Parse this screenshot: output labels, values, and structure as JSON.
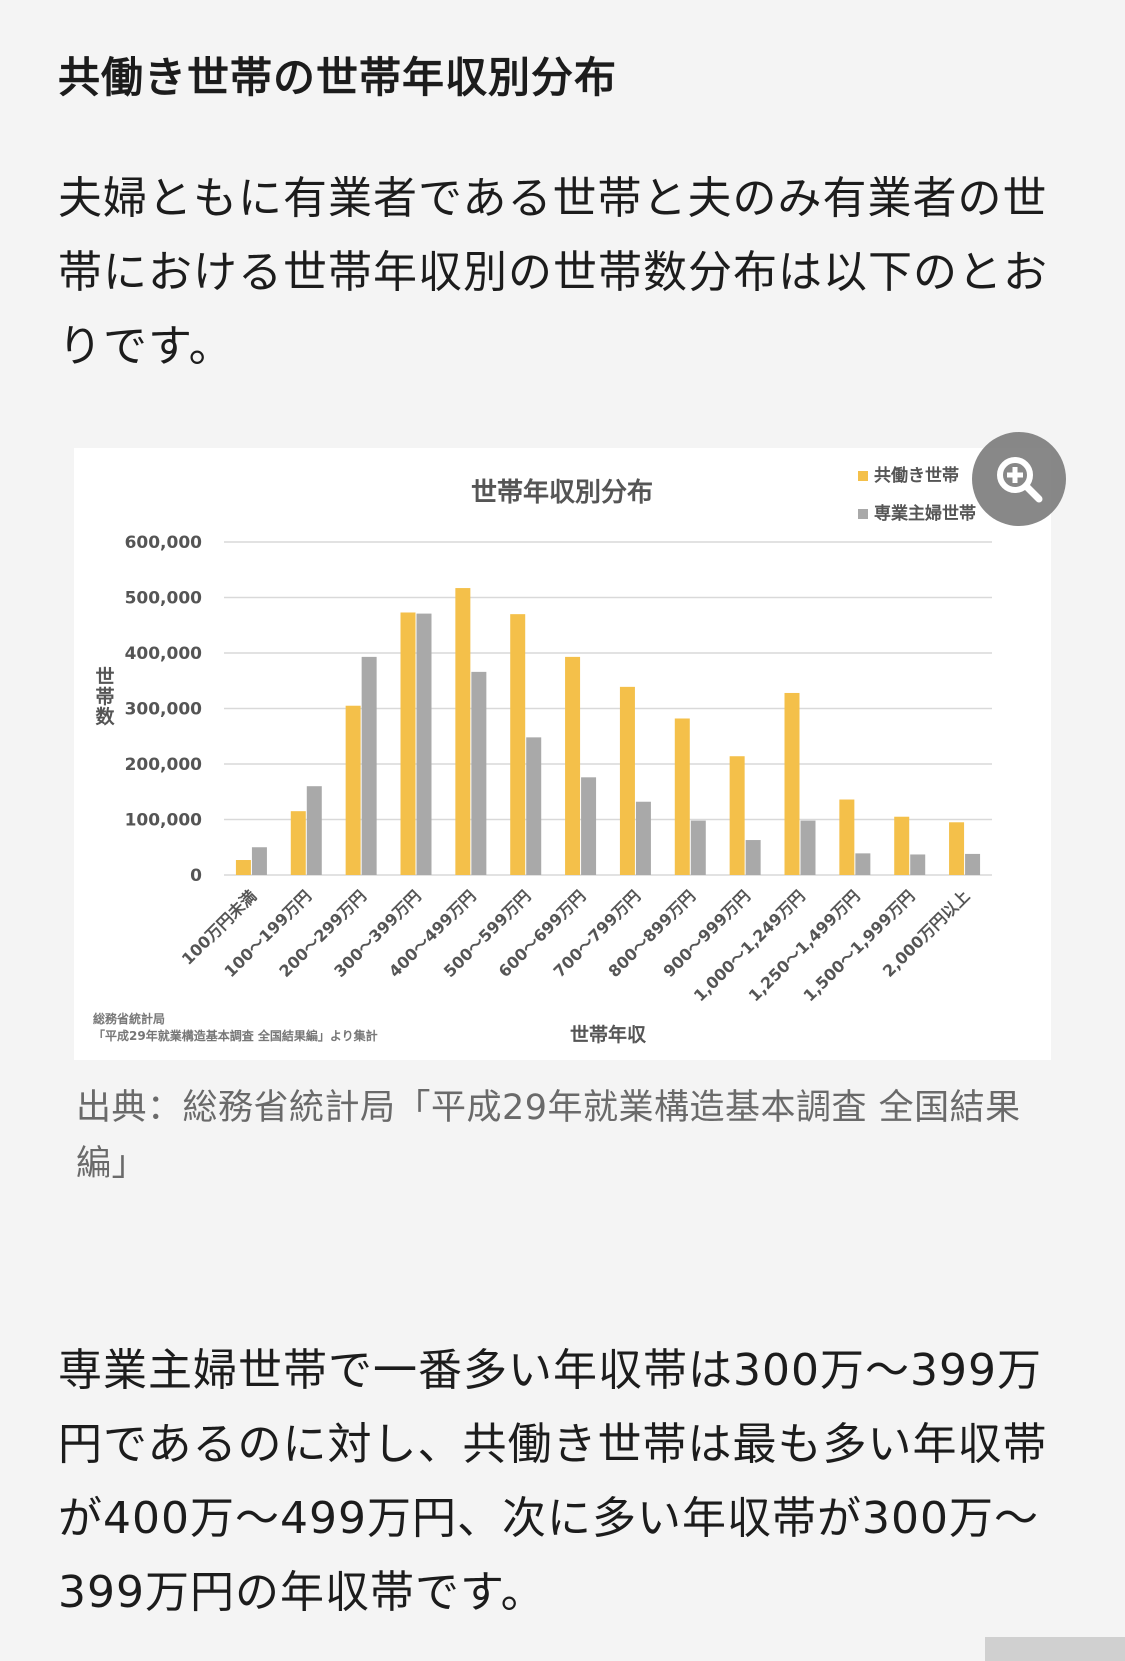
{
  "heading": "共働き世帯の世帯年収別分布",
  "intro": "夫婦ともに有業者である世帯と夫のみ有業者の世帯における世帯年収別の世帯数分布は以下のとおりです。",
  "caption": "出典：総務省統計局「平成29年就業構造基本調査 全国結果編」",
  "summary": "専業主婦世帯で一番多い年収帯は300万～399万円であるのに対し、共働き世帯は最も多い年収帯が400万～499万円、次に多い年収帯が300万～399万円の年収帯です。",
  "zoom_icon": "zoom-in-icon",
  "colors": {
    "series1": "#f4c04a",
    "series2": "#a9a9a9"
  },
  "chart_data": {
    "type": "bar",
    "title": "世帯年収別分布",
    "xlabel": "世帯年収",
    "ylabel": "世帯数",
    "ylim": [
      0,
      600000
    ],
    "yticks": [
      "0",
      "100,000",
      "200,000",
      "300,000",
      "400,000",
      "500,000",
      "600,000"
    ],
    "source_note_line1": "総務省統計局",
    "source_note_line2": "「平成29年就業構造基本調査 全国結果編」より集計",
    "legend_position": "top-right",
    "grid": true,
    "categories": [
      "100万円未満",
      "100～199万円",
      "200～299万円",
      "300～399万円",
      "400～499万円",
      "500～599万円",
      "600～699万円",
      "700～799万円",
      "800～899万円",
      "900～999万円",
      "1,000～1,249万円",
      "1,250～1,499万円",
      "1,500～1,999万円",
      "2,000万円以上"
    ],
    "series": [
      {
        "name": "共働き世帯",
        "values": [
          27000,
          115000,
          305000,
          473000,
          517000,
          470000,
          393000,
          339000,
          282000,
          214000,
          328000,
          136000,
          105000,
          95000
        ]
      },
      {
        "name": "専業主婦世帯",
        "values": [
          50000,
          160000,
          393000,
          471000,
          366000,
          248000,
          176000,
          132000,
          98000,
          63000,
          98000,
          39000,
          37000,
          38000
        ]
      }
    ]
  }
}
